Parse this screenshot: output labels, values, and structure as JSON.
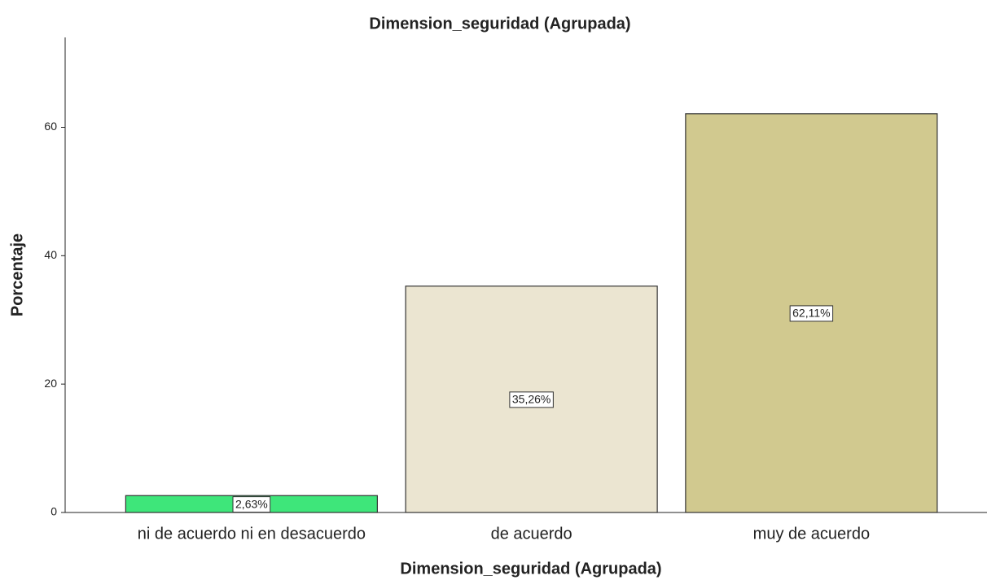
{
  "chart_data": {
    "type": "bar",
    "title": "Dimension_seguridad (Agrupada)",
    "x_label": "Dimension_seguridad (Agrupada)",
    "y_label": "Porcentaje",
    "categories": [
      "ni de acuerdo ni en desacuerdo",
      "de acuerdo",
      "muy de acuerdo"
    ],
    "values": [
      2.63,
      35.26,
      62.11
    ],
    "value_labels": [
      "2,63%",
      "35,26%",
      "62,11%"
    ],
    "colors": [
      "#3ee67a",
      "#ebe5d1",
      "#d1c98f"
    ],
    "ylim": [
      0,
      74
    ],
    "yticks": [
      0,
      20,
      40,
      60
    ],
    "grid": false
  }
}
